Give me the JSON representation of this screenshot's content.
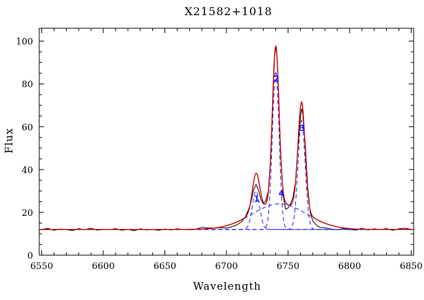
{
  "chart_data": {
    "type": "line",
    "title": "X21582+1018",
    "xlabel": "Wavelength",
    "ylabel": "Flux",
    "xlim": [
      6548,
      6852
    ],
    "ylim": [
      0,
      106
    ],
    "x_ticks": [
      6550,
      6600,
      6650,
      6700,
      6750,
      6800,
      6850
    ],
    "y_ticks": [
      0,
      20,
      40,
      60,
      80,
      100
    ],
    "grid": false,
    "legend": "none",
    "continuum": 12,
    "colors": {
      "observed": "#000000",
      "fit": "#cc0000",
      "components": "#1a1aff",
      "continuum": "#9999ff"
    },
    "components": [
      {
        "label": "1",
        "center": 6724,
        "amplitude": 18,
        "sigma": 3.0
      },
      {
        "label": "2",
        "center": 6740,
        "amplitude": 74,
        "sigma": 2.7
      },
      {
        "label": "3",
        "center": 6761,
        "amplitude": 51,
        "sigma": 2.9
      },
      {
        "label": "4",
        "center": 6743,
        "amplitude": 12,
        "sigma": 22
      }
    ],
    "series": [
      {
        "name": "",
        "style": "observed",
        "x": [
          6548,
          6555,
          6560,
          6565,
          6570,
          6575,
          6580,
          6585,
          6590,
          6595,
          6600,
          6605,
          6610,
          6615,
          6620,
          6625,
          6630,
          6635,
          6640,
          6645,
          6650,
          6655,
          6660,
          6665,
          6670,
          6675,
          6680,
          6685,
          6690,
          6695,
          6700,
          6704,
          6708,
          6712,
          6715,
          6718,
          6720,
          6722,
          6724,
          6726,
          6728,
          6730,
          6732,
          6734,
          6736,
          6738,
          6739,
          6740,
          6741,
          6742,
          6744,
          6746,
          6748,
          6750,
          6752,
          6754,
          6756,
          6758,
          6760,
          6761,
          6762,
          6764,
          6766,
          6768,
          6770,
          6773,
          6776,
          6780,
          6785,
          6790,
          6795,
          6800,
          6805,
          6810,
          6815,
          6820,
          6825,
          6830,
          6835,
          6840,
          6845,
          6852
        ],
        "y": [
          11.8,
          12.5,
          11.6,
          12.2,
          12.0,
          11.5,
          12.4,
          11.9,
          12.6,
          11.7,
          12.0,
          11.9,
          12.4,
          11.6,
          12.1,
          11.4,
          12.3,
          11.8,
          12.0,
          11.6,
          12.2,
          11.8,
          12.3,
          12.0,
          11.9,
          12.1,
          13.0,
          12.8,
          12.6,
          12.9,
          12.7,
          13.2,
          14.0,
          15.5,
          17.5,
          21.5,
          25.0,
          30.5,
          33.0,
          30.5,
          26.0,
          24.0,
          25.5,
          30.0,
          46.0,
          78.0,
          92.0,
          97.5,
          93.0,
          79.0,
          48.0,
          28.0,
          21.5,
          22.0,
          24.0,
          27.0,
          34.0,
          50.0,
          64.0,
          68.5,
          66.0,
          52.0,
          32.0,
          20.0,
          16.0,
          14.0,
          13.0,
          12.8,
          12.2,
          11.9,
          12.4,
          12.0,
          11.7,
          12.5,
          11.8,
          12.3,
          11.9,
          12.4,
          11.6,
          12.3,
          12.6,
          11.8
        ]
      }
    ]
  }
}
